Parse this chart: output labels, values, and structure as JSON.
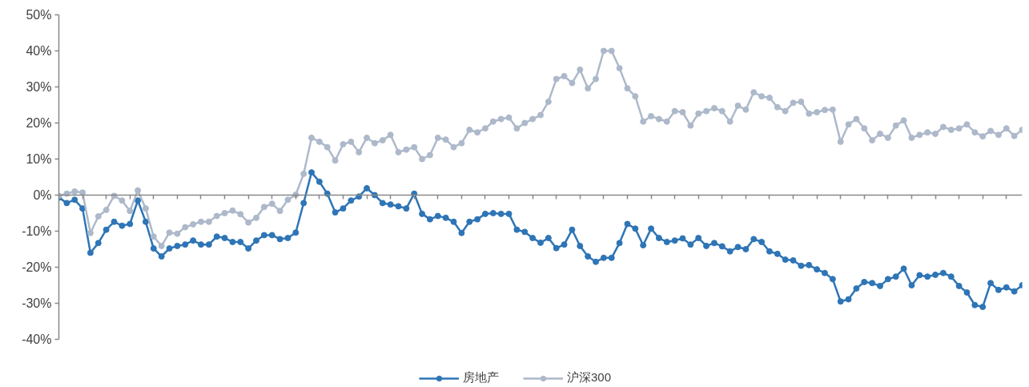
{
  "chart_data": {
    "type": "line",
    "categories": [
      null,
      null,
      null,
      null,
      null,
      null,
      null,
      null,
      null,
      null,
      null,
      null,
      null,
      null,
      null,
      null,
      null,
      null,
      null,
      null,
      null,
      null,
      null,
      null,
      null,
      null,
      null,
      null,
      null,
      null,
      null,
      null,
      null,
      null,
      null,
      null,
      null,
      null,
      null,
      null,
      null,
      null,
      null,
      null,
      null,
      null,
      null,
      null,
      null,
      null,
      null,
      null,
      null,
      null,
      null,
      null,
      null,
      null,
      null,
      null,
      null,
      null,
      null,
      null,
      null,
      null,
      null,
      null,
      null,
      null,
      null,
      null,
      null,
      null,
      null,
      null,
      null,
      null,
      null,
      null,
      null,
      null,
      null,
      null,
      null,
      null,
      null,
      null,
      null,
      null,
      null,
      null,
      null,
      null,
      null,
      null,
      null,
      null,
      null,
      null,
      null,
      null,
      null,
      null,
      null,
      null,
      null,
      null,
      null,
      null,
      null,
      null,
      null,
      null,
      null,
      null,
      null,
      null,
      null,
      null,
      null,
      null,
      null
    ],
    "series": [
      {
        "name": "房地产",
        "color": "#2e75b6",
        "values": [
          -0.7,
          -2.2,
          -1.3,
          -3.7,
          -16.0,
          -13.3,
          -9.6,
          -7.4,
          -8.5,
          -8.0,
          -1.5,
          -7.4,
          -14.8,
          -17.0,
          -14.8,
          -14.1,
          -13.7,
          -12.6,
          -13.7,
          -13.7,
          -11.5,
          -11.9,
          -13.0,
          -13.0,
          -14.8,
          -12.6,
          -11.1,
          -11.1,
          -12.2,
          -11.9,
          -10.4,
          -2.2,
          6.3,
          3.7,
          0.4,
          -4.8,
          -3.7,
          -1.5,
          -0.4,
          1.9,
          0.0,
          -2.2,
          -2.6,
          -3.1,
          -3.7,
          0.4,
          -5.2,
          -6.7,
          -5.8,
          -6.3,
          -7.4,
          -10.5,
          -7.4,
          -6.7,
          -5.2,
          -5.0,
          -5.2,
          -5.2,
          -9.6,
          -10.2,
          -11.9,
          -13.2,
          -11.9,
          -14.7,
          -13.7,
          -9.6,
          -14.1,
          -17.0,
          -18.5,
          -17.4,
          -17.4,
          -13.3,
          -8.0,
          -9.3,
          -13.9,
          -9.3,
          -11.9,
          -13.0,
          -12.6,
          -12.0,
          -13.7,
          -11.9,
          -14.1,
          -13.3,
          -14.2,
          -15.6,
          -14.4,
          -15.0,
          -12.2,
          -13.0,
          -15.6,
          -16.3,
          -17.9,
          -18.1,
          -19.6,
          -19.4,
          -20.6,
          -21.6,
          -23.3,
          -29.5,
          -28.9,
          -25.9,
          -24.1,
          -24.4,
          -25.2,
          -23.3,
          -22.6,
          -20.4,
          -25.0,
          -22.2,
          -22.6,
          -22.1,
          -21.6,
          -22.6,
          -25.2,
          -27.0,
          -30.5,
          -31.0,
          -24.4,
          -26.3,
          -25.6,
          -26.7,
          -25.0
        ]
      },
      {
        "name": "沪深300",
        "color": "#adb9ca",
        "values": [
          -0.2,
          0.4,
          1.0,
          0.7,
          -10.5,
          -5.9,
          -4.1,
          -0.2,
          -1.5,
          -4.4,
          1.3,
          -3.7,
          -11.5,
          -14.1,
          -10.4,
          -10.7,
          -8.9,
          -8.1,
          -7.4,
          -7.4,
          -5.8,
          -5.0,
          -4.3,
          -5.3,
          -7.6,
          -6.3,
          -3.3,
          -2.4,
          -4.4,
          -1.3,
          0.1,
          5.9,
          15.9,
          14.8,
          13.3,
          9.6,
          14.1,
          14.8,
          11.9,
          15.9,
          14.4,
          15.2,
          16.7,
          11.9,
          12.6,
          13.3,
          10.0,
          11.1,
          15.9,
          15.4,
          13.3,
          14.4,
          18.1,
          17.4,
          18.5,
          20.4,
          21.1,
          21.5,
          18.5,
          20.0,
          21.1,
          22.2,
          25.9,
          32.2,
          33.0,
          31.1,
          34.8,
          29.6,
          32.2,
          40.0,
          40.0,
          35.2,
          29.6,
          27.4,
          20.4,
          21.9,
          21.1,
          20.4,
          23.3,
          23.0,
          19.3,
          22.6,
          23.3,
          24.1,
          23.3,
          20.4,
          24.8,
          23.7,
          28.5,
          27.4,
          27.0,
          24.4,
          23.3,
          25.6,
          25.9,
          22.6,
          23.0,
          23.6,
          23.7,
          14.8,
          19.6,
          21.1,
          18.5,
          15.2,
          17.0,
          15.9,
          19.3,
          20.7,
          15.9,
          16.7,
          17.4,
          17.0,
          18.9,
          18.1,
          18.5,
          19.6,
          17.4,
          16.3,
          17.8,
          16.7,
          18.5,
          16.4,
          18.1
        ]
      }
    ],
    "ylim": [
      -40,
      50
    ],
    "yticks": [
      {
        "value": -40,
        "label": "-40%"
      },
      {
        "value": -30,
        "label": "-30%"
      },
      {
        "value": -20,
        "label": "-20%"
      },
      {
        "value": -10,
        "label": "-10%"
      },
      {
        "value": 0,
        "label": "0%"
      },
      {
        "value": 10,
        "label": "10%"
      },
      {
        "value": 20,
        "label": "20%"
      },
      {
        "value": 30,
        "label": "30%"
      },
      {
        "value": 40,
        "label": "40%"
      },
      {
        "value": 50,
        "label": "50%"
      }
    ],
    "ref_lines": [
      {
        "axis": "y",
        "value": 0,
        "color": "#898989"
      }
    ],
    "legend": "bottom",
    "marker": "circle",
    "line_style": "solid",
    "grid": false,
    "tick_labels": "y"
  }
}
